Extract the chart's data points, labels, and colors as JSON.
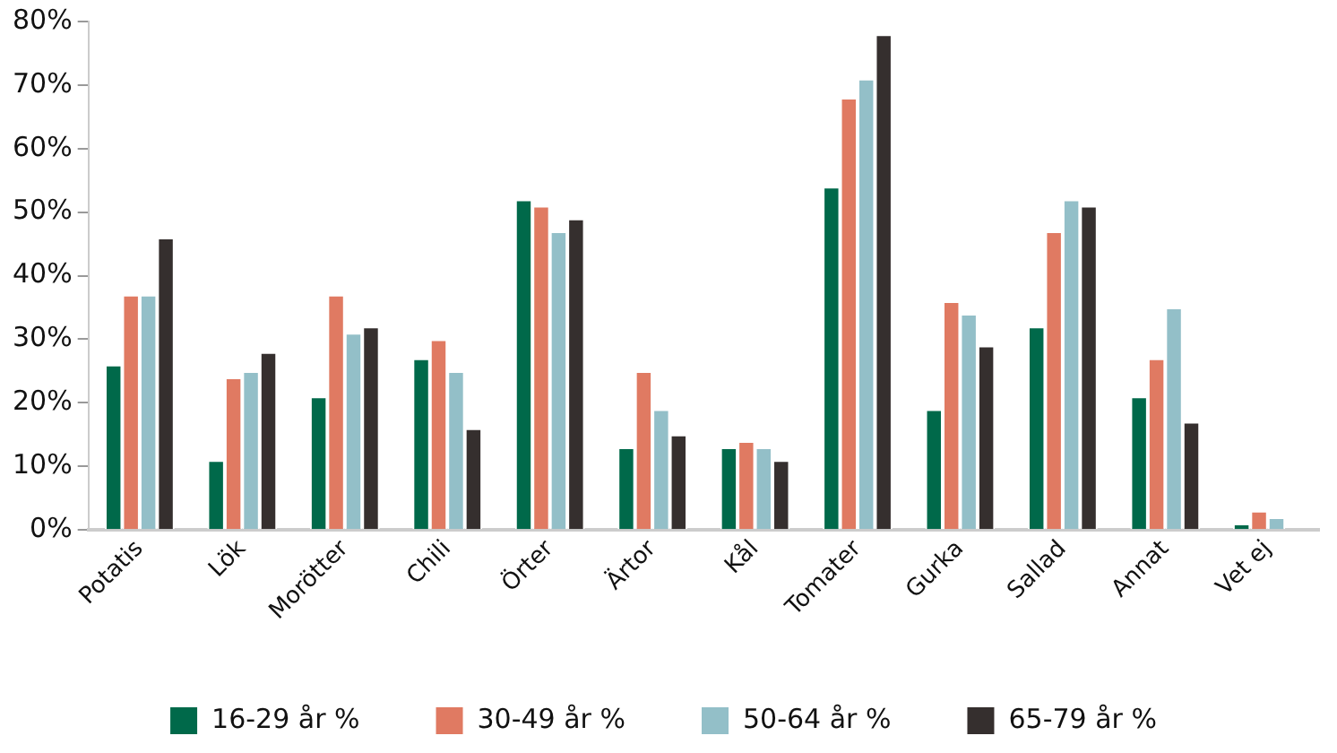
{
  "chart_data": {
    "type": "bar",
    "categories": [
      "Potatis",
      "Lök",
      "Morötter",
      "Chili",
      "Örter",
      "Ärtor",
      "Kål",
      "Tomater",
      "Gurka",
      "Sallad",
      "Annat",
      "Vet ej"
    ],
    "series": [
      {
        "name": "16-29 år %",
        "color": "#00694a",
        "values": [
          26,
          11,
          21,
          27,
          52,
          13,
          13,
          54,
          19,
          32,
          21,
          1
        ]
      },
      {
        "name": "30-49 år %",
        "color": "#e07a62",
        "values": [
          37,
          24,
          37,
          30,
          51,
          25,
          14,
          68,
          36,
          47,
          27,
          3
        ]
      },
      {
        "name": "50-64 år %",
        "color": "#93bfc8",
        "values": [
          37,
          25,
          31,
          25,
          47,
          19,
          13,
          71,
          34,
          52,
          35,
          2
        ]
      },
      {
        "name": "65-79 år %",
        "color": "#352f2e",
        "values": [
          46,
          28,
          32,
          16,
          49,
          15,
          11,
          78,
          29,
          51,
          17,
          null
        ]
      }
    ],
    "ylim": [
      0,
      80
    ],
    "yticks": [
      {
        "value": 0,
        "label": "0%"
      },
      {
        "value": 10,
        "label": "10%"
      },
      {
        "value": 20,
        "label": "20%"
      },
      {
        "value": 30,
        "label": "30%"
      },
      {
        "value": 40,
        "label": "40%"
      },
      {
        "value": 50,
        "label": "50%"
      },
      {
        "value": 60,
        "label": "60%"
      },
      {
        "value": 70,
        "label": "70%"
      },
      {
        "value": 80,
        "label": "80%"
      }
    ],
    "grid": false,
    "legend": "bottom"
  }
}
